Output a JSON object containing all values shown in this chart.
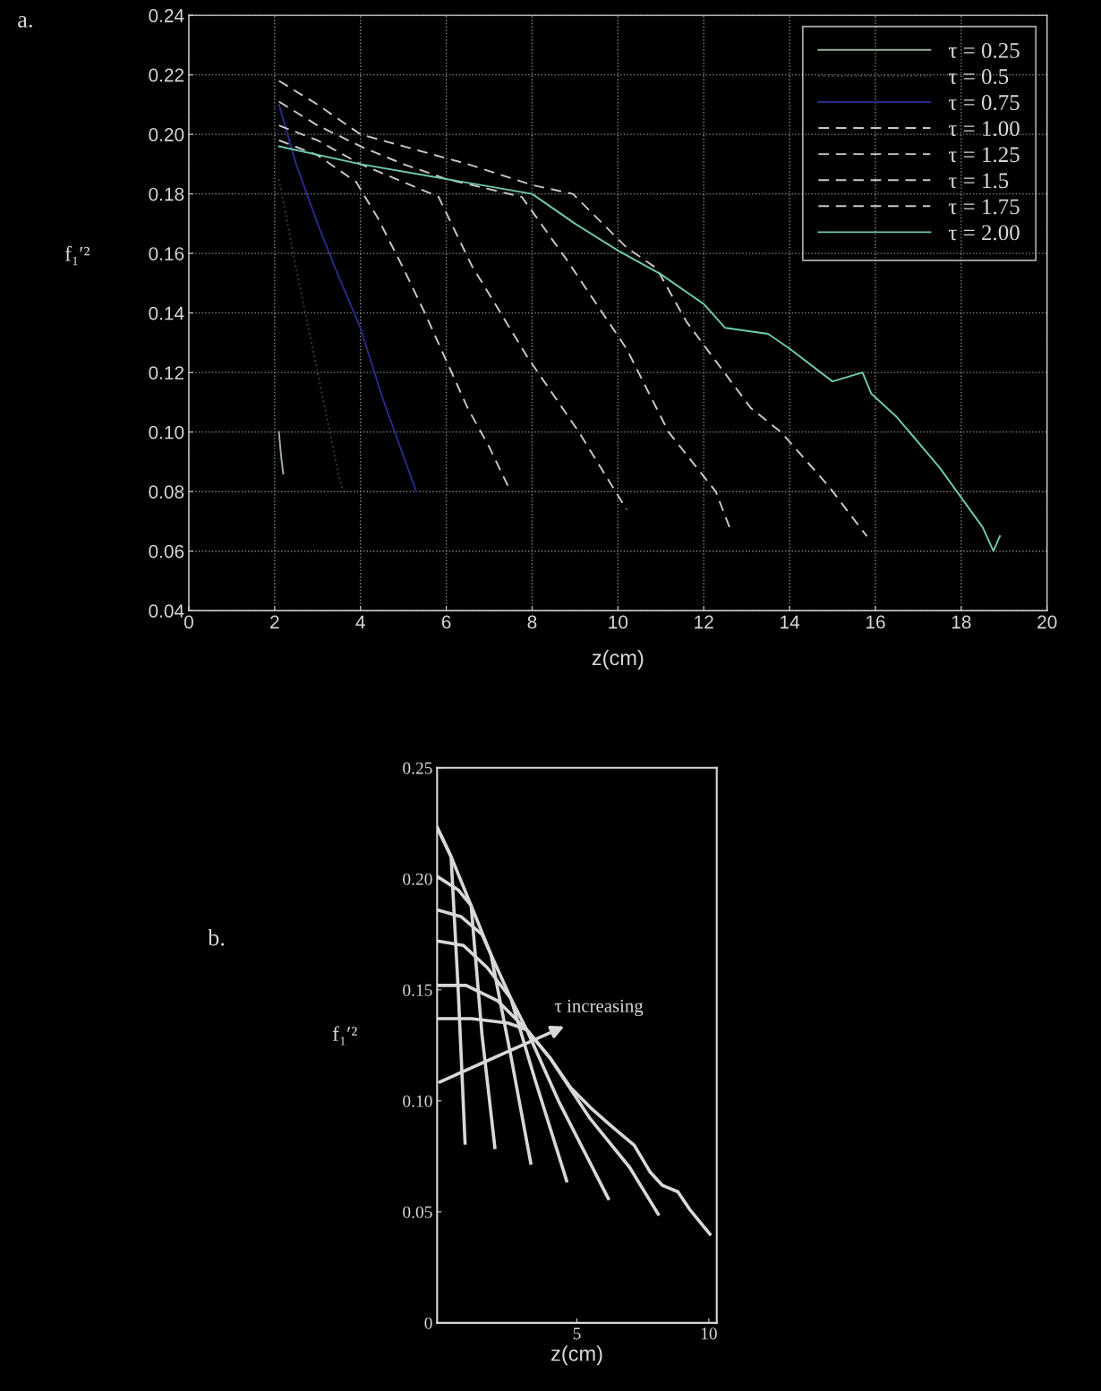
{
  "chart_data": [
    {
      "type": "line",
      "xlabel": "z(cm)",
      "ylabel": "f₁′²",
      "annotations": [
        "a."
      ],
      "xlim": [
        0,
        20
      ],
      "xticks": [
        0,
        2,
        4,
        6,
        8,
        10,
        12,
        14,
        16,
        18,
        20
      ],
      "ylim": [
        0.04,
        0.24
      ],
      "yticks": [
        {
          "value": 0.04,
          "label": "0.04"
        },
        {
          "value": 0.06,
          "label": "0.06"
        },
        {
          "value": 0.08,
          "label": "0.08"
        },
        {
          "value": 0.1,
          "label": "0.10"
        },
        {
          "value": 0.12,
          "label": "0.12"
        },
        {
          "value": 0.14,
          "label": "0.14"
        },
        {
          "value": 0.16,
          "label": "0.16"
        },
        {
          "value": 0.18,
          "label": "0.18"
        },
        {
          "value": 0.2,
          "label": "0.20"
        },
        {
          "value": 0.22,
          "label": "0.22"
        },
        {
          "value": 0.24,
          "label": "0.24"
        }
      ],
      "grid": true,
      "legend": "top right",
      "series": [
        {
          "name": "τ = 0.25",
          "color": "#9ab0a0",
          "line_style": "solid",
          "x": [
            2.1,
            2.15,
            2.2
          ],
          "values": [
            0.1,
            0.092,
            0.086
          ]
        },
        {
          "name": "τ = 0.5",
          "color": "#3a3a3a",
          "line_style": "dotted",
          "x": [
            2.1,
            2.5,
            3.0,
            3.5,
            3.6
          ],
          "values": [
            0.185,
            0.155,
            0.12,
            0.085,
            0.08
          ]
        },
        {
          "name": "τ = 0.75",
          "color": "#2a2a8a",
          "line_style": "solid",
          "x": [
            2.1,
            2.5,
            3.0,
            3.5,
            4.0,
            4.5,
            5.0,
            5.3
          ],
          "values": [
            0.21,
            0.19,
            0.17,
            0.152,
            0.135,
            0.112,
            0.092,
            0.08
          ]
        },
        {
          "name": "τ = 1.00",
          "color": "#c8c8c8",
          "line_style": "dashed",
          "x": [
            2.1,
            3.0,
            3.9,
            4.4,
            5.0,
            5.5,
            6.0,
            6.5,
            7.0,
            7.5
          ],
          "values": [
            0.198,
            0.193,
            0.184,
            0.172,
            0.155,
            0.14,
            0.124,
            0.108,
            0.095,
            0.08
          ]
        },
        {
          "name": "τ = 1.25",
          "color": "#c8c8c8",
          "line_style": "dashed",
          "x": [
            2.1,
            3.0,
            4.0,
            5.0,
            5.82,
            6.59,
            7.9,
            9.09,
            10.2
          ],
          "values": [
            0.203,
            0.198,
            0.19,
            0.184,
            0.179,
            0.156,
            0.125,
            0.1,
            0.074
          ]
        },
        {
          "name": "τ = 1.5",
          "color": "#c8c8c8",
          "line_style": "dashed",
          "x": [
            2.1,
            3.0,
            4.0,
            5.0,
            6.0,
            7.76,
            8.8,
            10.2,
            11.18,
            12.28,
            12.6
          ],
          "values": [
            0.211,
            0.203,
            0.196,
            0.19,
            0.185,
            0.179,
            0.158,
            0.128,
            0.1,
            0.08,
            0.068
          ]
        },
        {
          "name": "τ = 1.75",
          "color": "#c8c8c8",
          "line_style": "dashed",
          "x": [
            2.1,
            3.0,
            4.0,
            5.0,
            6.5,
            8.0,
            8.95,
            10.2,
            10.9,
            11.6,
            13.1,
            13.8,
            14.9,
            15.8
          ],
          "values": [
            0.218,
            0.21,
            0.2,
            0.196,
            0.19,
            0.183,
            0.18,
            0.162,
            0.155,
            0.137,
            0.108,
            0.1,
            0.082,
            0.065
          ]
        },
        {
          "name": "τ = 2.00",
          "color": "#70c8b0",
          "line_style": "solid",
          "x": [
            2.1,
            4.0,
            6.0,
            8.0,
            9.0,
            10.0,
            11.0,
            12.0,
            12.5,
            13.5,
            14.0,
            15.0,
            15.7,
            15.9,
            16.5,
            17.5,
            18.5,
            18.75,
            18.9
          ],
          "values": [
            0.196,
            0.19,
            0.185,
            0.18,
            0.17,
            0.161,
            0.153,
            0.143,
            0.135,
            0.133,
            0.128,
            0.117,
            0.12,
            0.113,
            0.105,
            0.088,
            0.068,
            0.06,
            0.065
          ]
        }
      ]
    },
    {
      "type": "line",
      "xlabel": "z(cm)",
      "ylabel": "f₁′²",
      "annotations": [
        "b.",
        "τ increasing"
      ],
      "xlim": [
        -0.3,
        10.3
      ],
      "xticks": [
        5,
        10
      ],
      "ylim": [
        0,
        0.25
      ],
      "yticks": [
        0,
        {
          "value": 0.05,
          "label": "0.05"
        },
        {
          "value": 0.1,
          "label": "0.10"
        },
        {
          "value": 0.15,
          "label": "0.15"
        },
        {
          "value": 0.2,
          "label": "0.20"
        },
        {
          "value": 0.25,
          "label": "0.25"
        }
      ],
      "line_style": "solid",
      "series": [
        {
          "color": "#d8d8d8",
          "x": [
            -0.29,
            0.23,
            0.5,
            0.76
          ],
          "values": [
            0.223,
            0.21,
            0.15,
            0.081
          ]
        },
        {
          "color": "#d8d8d8",
          "x": [
            -0.29,
            0.5,
            0.99,
            1.4,
            1.89
          ],
          "values": [
            0.201,
            0.195,
            0.188,
            0.13,
            0.079
          ]
        },
        {
          "color": "#d8d8d8",
          "x": [
            -0.29,
            0.6,
            1.4,
            1.74,
            2.5,
            3.25
          ],
          "values": [
            0.186,
            0.183,
            0.175,
            0.166,
            0.12,
            0.072
          ]
        },
        {
          "color": "#d8d8d8",
          "x": [
            -0.29,
            0.7,
            1.6,
            2.5,
            3.4,
            4.61
          ],
          "values": [
            0.172,
            0.17,
            0.16,
            0.146,
            0.11,
            0.064
          ]
        },
        {
          "color": "#d8d8d8",
          "x": [
            -0.29,
            0.8,
            2.0,
            3.1,
            4.3,
            6.19
          ],
          "values": [
            0.152,
            0.152,
            0.145,
            0.132,
            0.1,
            0.056
          ]
        },
        {
          "color": "#d8d8d8",
          "x": [
            -0.29,
            1.0,
            2.4,
            3.1,
            4.0,
            5.5,
            7.0,
            8.08
          ],
          "values": [
            0.137,
            0.137,
            0.135,
            0.132,
            0.119,
            0.092,
            0.07,
            0.049
          ]
        },
        {
          "color": "#d8d8d8",
          "x": [
            -0.29,
            0.23,
            0.99,
            1.74,
            2.5,
            3.1,
            4.0,
            4.76,
            5.51,
            6.27,
            7.17,
            7.77,
            8.23,
            8.83,
            9.28,
            10.04
          ],
          "values": [
            0.223,
            0.21,
            0.188,
            0.166,
            0.146,
            0.132,
            0.119,
            0.106,
            0.097,
            0.089,
            0.08,
            0.068,
            0.062,
            0.059,
            0.051,
            0.04
          ]
        }
      ]
    }
  ]
}
